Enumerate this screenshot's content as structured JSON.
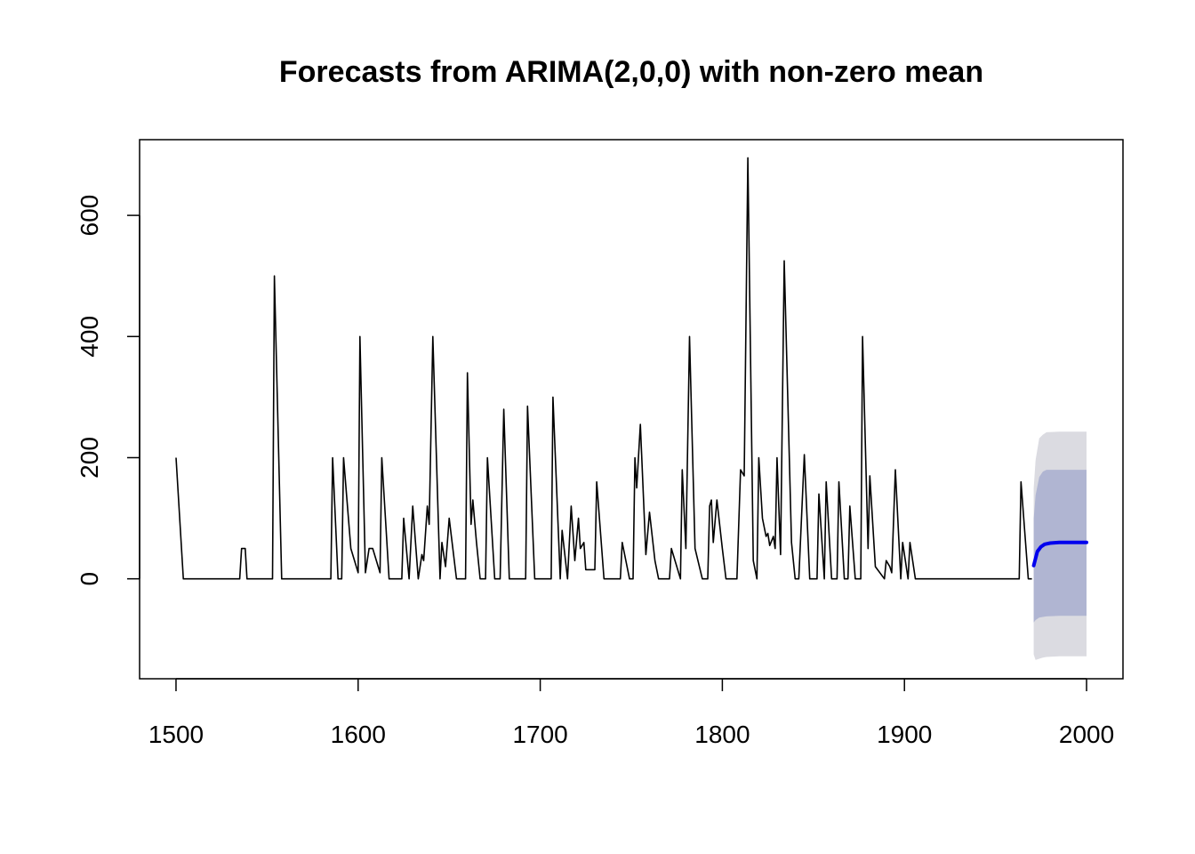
{
  "chart_data": {
    "type": "line",
    "title": "Forecasts from ARIMA(2,0,0) with non-zero mean",
    "xlabel": "",
    "ylabel": "",
    "xlim": [
      1480,
      2020
    ],
    "ylim": [
      -165,
      725
    ],
    "x_ticks": [
      1500,
      1600,
      1700,
      1800,
      1900,
      2000
    ],
    "y_ticks": [
      0,
      200,
      400,
      600
    ],
    "grid": false,
    "legend": "none",
    "colors": {
      "series": "#000000",
      "forecast": "#0000EE",
      "band80": "#B0B5D2",
      "band95": "#DBDBE1"
    },
    "series": [
      {
        "points": [
          [
            1500,
            200
          ],
          [
            1504,
            0
          ],
          [
            1535,
            0
          ],
          [
            1536,
            50
          ],
          [
            1538,
            50
          ],
          [
            1539,
            0
          ],
          [
            1553,
            0
          ],
          [
            1554,
            500
          ],
          [
            1558,
            0
          ],
          [
            1585,
            0
          ],
          [
            1586,
            200
          ],
          [
            1589,
            0
          ],
          [
            1591,
            0
          ],
          [
            1592,
            200
          ],
          [
            1596,
            50
          ],
          [
            1600,
            10
          ],
          [
            1601,
            400
          ],
          [
            1604,
            10
          ],
          [
            1606,
            50
          ],
          [
            1608,
            50
          ],
          [
            1612,
            10
          ],
          [
            1613,
            200
          ],
          [
            1617,
            0
          ],
          [
            1624,
            0
          ],
          [
            1625,
            100
          ],
          [
            1628,
            0
          ],
          [
            1630,
            120
          ],
          [
            1633,
            0
          ],
          [
            1635,
            40
          ],
          [
            1636,
            30
          ],
          [
            1638,
            120
          ],
          [
            1639,
            90
          ],
          [
            1641,
            400
          ],
          [
            1645,
            0
          ],
          [
            1646,
            60
          ],
          [
            1648,
            20
          ],
          [
            1650,
            100
          ],
          [
            1654,
            0
          ],
          [
            1659,
            0
          ],
          [
            1660,
            340
          ],
          [
            1662,
            90
          ],
          [
            1663,
            130
          ],
          [
            1665,
            60
          ],
          [
            1667,
            0
          ],
          [
            1670,
            0
          ],
          [
            1671,
            200
          ],
          [
            1675,
            0
          ],
          [
            1678,
            0
          ],
          [
            1680,
            280
          ],
          [
            1683,
            0
          ],
          [
            1692,
            0
          ],
          [
            1693,
            285
          ],
          [
            1697,
            0
          ],
          [
            1706,
            0
          ],
          [
            1707,
            300
          ],
          [
            1711,
            0
          ],
          [
            1712,
            80
          ],
          [
            1715,
            0
          ],
          [
            1717,
            120
          ],
          [
            1719,
            30
          ],
          [
            1721,
            100
          ],
          [
            1722,
            50
          ],
          [
            1724,
            60
          ],
          [
            1725,
            15
          ],
          [
            1730,
            15
          ],
          [
            1731,
            160
          ],
          [
            1735,
            0
          ],
          [
            1744,
            0
          ],
          [
            1745,
            60
          ],
          [
            1749,
            0
          ],
          [
            1751,
            0
          ],
          [
            1752,
            200
          ],
          [
            1753,
            150
          ],
          [
            1755,
            255
          ],
          [
            1758,
            40
          ],
          [
            1760,
            110
          ],
          [
            1763,
            30
          ],
          [
            1765,
            0
          ],
          [
            1771,
            0
          ],
          [
            1772,
            50
          ],
          [
            1777,
            0
          ],
          [
            1778,
            180
          ],
          [
            1780,
            50
          ],
          [
            1782,
            400
          ],
          [
            1785,
            50
          ],
          [
            1789,
            0
          ],
          [
            1792,
            0
          ],
          [
            1793,
            120
          ],
          [
            1794,
            130
          ],
          [
            1795,
            60
          ],
          [
            1797,
            130
          ],
          [
            1800,
            50
          ],
          [
            1802,
            0
          ],
          [
            1808,
            0
          ],
          [
            1810,
            180
          ],
          [
            1812,
            170
          ],
          [
            1814,
            695
          ],
          [
            1817,
            30
          ],
          [
            1819,
            0
          ],
          [
            1820,
            200
          ],
          [
            1822,
            100
          ],
          [
            1824,
            70
          ],
          [
            1825,
            75
          ],
          [
            1826,
            55
          ],
          [
            1828,
            70
          ],
          [
            1829,
            50
          ],
          [
            1830,
            200
          ],
          [
            1832,
            40
          ],
          [
            1834,
            525
          ],
          [
            1838,
            60
          ],
          [
            1840,
            0
          ],
          [
            1842,
            0
          ],
          [
            1845,
            205
          ],
          [
            1848,
            0
          ],
          [
            1852,
            0
          ],
          [
            1853,
            140
          ],
          [
            1856,
            0
          ],
          [
            1857,
            160
          ],
          [
            1860,
            0
          ],
          [
            1863,
            0
          ],
          [
            1864,
            160
          ],
          [
            1867,
            0
          ],
          [
            1869,
            0
          ],
          [
            1870,
            120
          ],
          [
            1873,
            0
          ],
          [
            1876,
            0
          ],
          [
            1877,
            400
          ],
          [
            1880,
            50
          ],
          [
            1881,
            170
          ],
          [
            1884,
            20
          ],
          [
            1889,
            0
          ],
          [
            1890,
            30
          ],
          [
            1892,
            20
          ],
          [
            1893,
            10
          ],
          [
            1895,
            180
          ],
          [
            1898,
            0
          ],
          [
            1899,
            60
          ],
          [
            1902,
            0
          ],
          [
            1903,
            60
          ],
          [
            1906,
            0
          ],
          [
            1963,
            0
          ],
          [
            1964,
            160
          ],
          [
            1968,
            0
          ],
          [
            1970,
            0
          ]
        ]
      },
      {
        "type": "forecast",
        "points": [
          [
            1971,
            22
          ],
          [
            1973,
            45
          ],
          [
            1975,
            53
          ],
          [
            1977,
            57
          ],
          [
            1980,
            59
          ],
          [
            1985,
            60
          ],
          [
            1990,
            60
          ],
          [
            1995,
            60
          ],
          [
            2000,
            60
          ]
        ]
      }
    ],
    "intervals": [
      {
        "level": "95",
        "points": [
          [
            1971,
            -125,
            150
          ],
          [
            1972,
            -134,
            196
          ],
          [
            1974,
            -132,
            232
          ],
          [
            1976,
            -130,
            238
          ],
          [
            1978,
            -129,
            242
          ],
          [
            1985,
            -128,
            243
          ],
          [
            2000,
            -128,
            243
          ]
        ]
      },
      {
        "level": "80",
        "points": [
          [
            1971,
            -72,
            100
          ],
          [
            1972,
            -68,
            138
          ],
          [
            1974,
            -64,
            168
          ],
          [
            1976,
            -63,
            177
          ],
          [
            1978,
            -62,
            180
          ],
          [
            1985,
            -61,
            180
          ],
          [
            2000,
            -61,
            180
          ]
        ]
      }
    ]
  }
}
